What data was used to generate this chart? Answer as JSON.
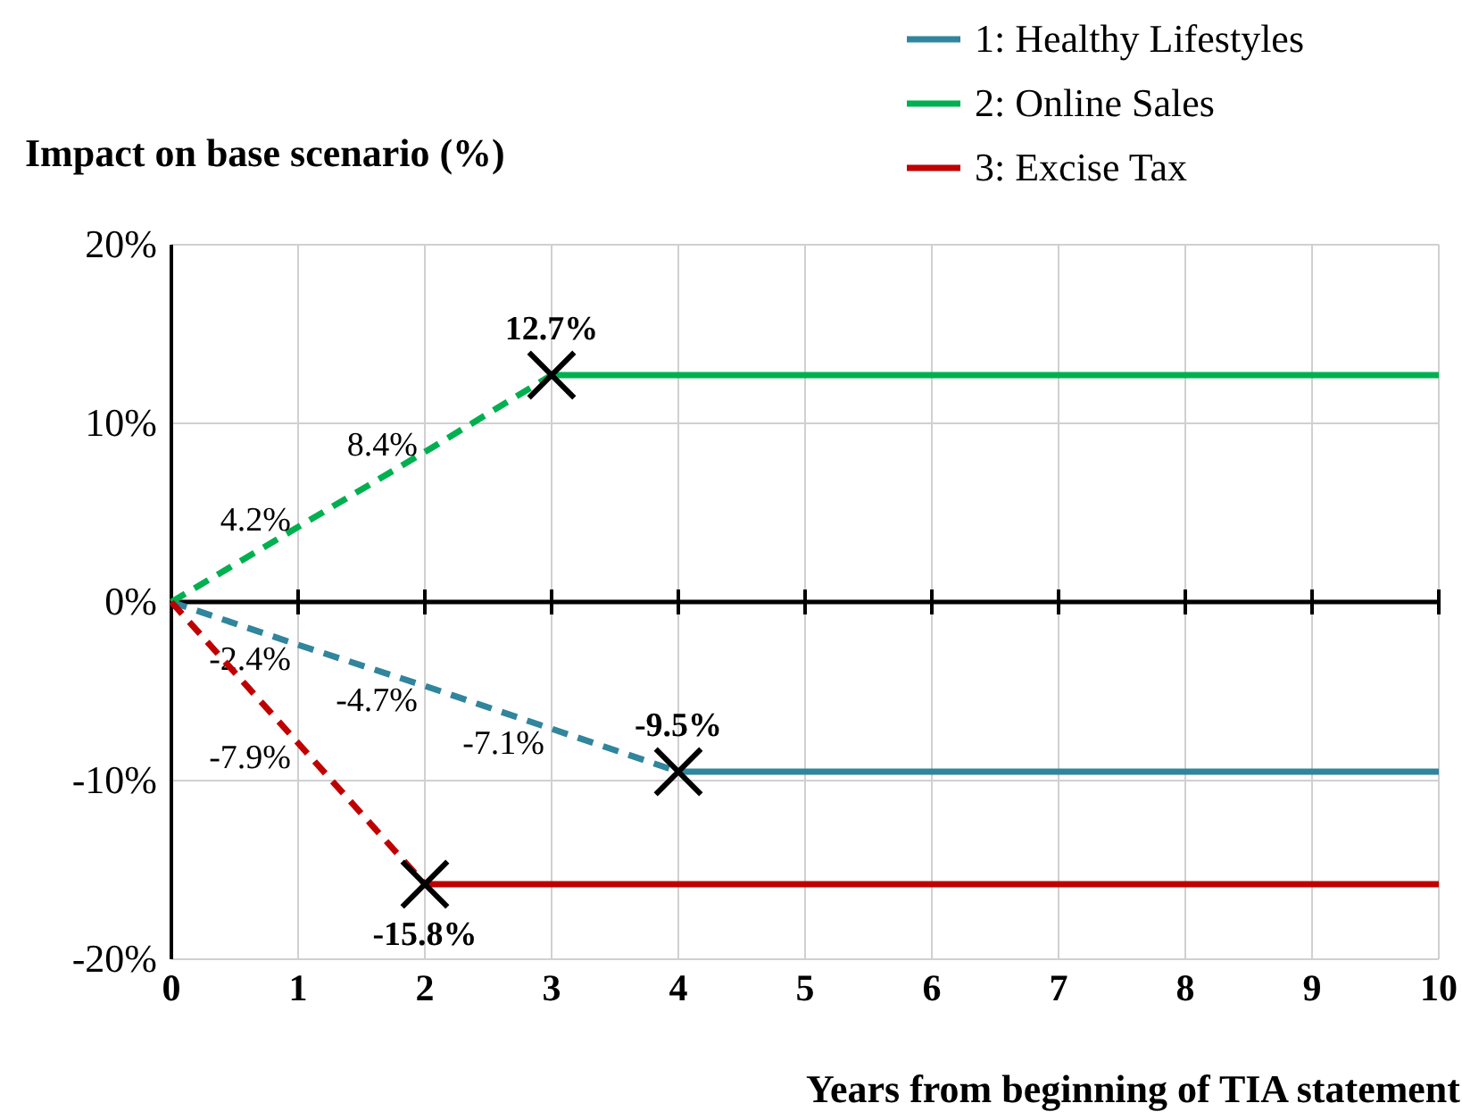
{
  "chart_data": {
    "type": "line",
    "ylabel": "Impact on base scenario (%)",
    "xlabel": "Years from beginning of TIA statement",
    "xlim": [
      0,
      10
    ],
    "xticks": [
      0,
      1,
      2,
      3,
      4,
      5,
      6,
      7,
      8,
      9,
      10
    ],
    "ylim": [
      -20,
      20
    ],
    "yticks": [
      {
        "value": -20,
        "label": "-20%"
      },
      {
        "value": -10,
        "label": "-10%"
      },
      {
        "value": 0,
        "label": "0%"
      },
      {
        "value": 10,
        "label": "10%"
      },
      {
        "value": 20,
        "label": "20%"
      }
    ],
    "grid": true,
    "legend": "top right",
    "series": [
      {
        "color": "#31859c",
        "line_style": "dashed",
        "x": [
          0,
          1,
          2,
          3,
          4
        ],
        "values": [
          0,
          -2.4,
          -4.7,
          -7.1,
          -9.5
        ],
        "value_labels": [
          null,
          "-2.4%",
          "-4.7%",
          "-7.1%",
          null
        ]
      },
      {
        "color": "#00b050",
        "line_style": "dashed",
        "x": [
          0,
          1,
          2,
          3
        ],
        "values": [
          0,
          4.2,
          8.4,
          12.7
        ],
        "value_labels": [
          null,
          "4.2%",
          "8.4%",
          null
        ]
      },
      {
        "color": "#c00000",
        "line_style": "dashed",
        "x": [
          0,
          1,
          2
        ],
        "values": [
          0,
          -7.9,
          -15.8
        ],
        "value_labels": [
          null,
          "-7.9%",
          null
        ]
      },
      {
        "name": "1: Healthy Lifestyles",
        "color": "#31859c",
        "line_style": "solid",
        "x": [
          4,
          10
        ],
        "values": [
          -9.5,
          -9.5
        ]
      },
      {
        "name": "2: Online Sales",
        "color": "#00b050",
        "line_style": "solid",
        "x": [
          3,
          10
        ],
        "values": [
          12.7,
          12.7
        ]
      },
      {
        "name": "3: Excise Tax",
        "color": "#c00000",
        "line_style": "solid",
        "x": [
          2,
          10
        ],
        "values": [
          -15.8,
          -15.8
        ]
      },
      {
        "type": "scatter",
        "marker": "cross",
        "color": "#000000",
        "x": [
          3,
          4,
          2
        ],
        "values": [
          12.7,
          -9.5,
          -15.8
        ],
        "value_labels": [
          "12.7%",
          "-9.5%",
          "-15.8%"
        ]
      }
    ]
  }
}
